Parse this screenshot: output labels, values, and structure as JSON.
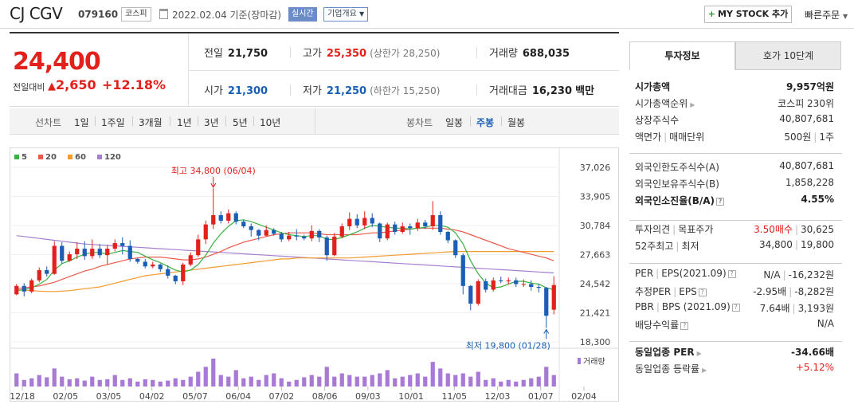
{
  "header": {
    "name": "CJ CGV",
    "code": "079160",
    "market": "코스피",
    "date": "2022.02.04 기준(장마감)",
    "realtime": "실시간",
    "corp_info": "기업개요",
    "mystock_label": "MY STOCK 추가",
    "quick_order": "빠른주문"
  },
  "price": {
    "current": "24,400",
    "change_label": "전일대비",
    "change": "2,650",
    "change_pct": "+12.18%",
    "prev_label": "전일",
    "prev": "21,750",
    "high_label": "고가",
    "high": "25,350",
    "upper_limit": "(상한가 28,250)",
    "volume_label": "거래량",
    "volume": "688,035",
    "open_label": "시가",
    "open": "21,300",
    "low_label": "저가",
    "low": "21,250",
    "lower_limit": "(하한가 15,250)",
    "amount_label": "거래대금",
    "amount": "16,230",
    "amount_unit": "백만"
  },
  "period_bar": {
    "line_label": "선차트",
    "line_periods": [
      "1일",
      "1주일",
      "3개월",
      "1년",
      "3년",
      "5년",
      "10년"
    ],
    "candle_label": "봉차트",
    "candle_periods": [
      "일봉",
      "주봉",
      "월봉"
    ],
    "selected_candle": "주봉"
  },
  "chart_data": {
    "type": "candlestick",
    "legend": [
      "5",
      "20",
      "60",
      "120"
    ],
    "colors": {
      "ma5": "#3cb043",
      "ma20": "#ea5a4b",
      "ma60": "#f39a2d",
      "ma120": "#a67fd0",
      "up": "#e3211c",
      "down": "#1a5fb4"
    },
    "y_ticks": [
      "37,026",
      "33,905",
      "30,784",
      "27,663",
      "24,542",
      "21,421",
      "18,300"
    ],
    "ylim": [
      18300,
      37026
    ],
    "x_ticks": [
      "12/18",
      "02/05",
      "03/05",
      "04/02",
      "05/07",
      "06/04",
      "07/02",
      "08/06",
      "09/03",
      "10/01",
      "11/05",
      "12/03",
      "01/07",
      "02/04"
    ],
    "high_annotation": "최고 34,800 (06/04)",
    "low_annotation": "최저 19,800 (01/28)",
    "volume_label": "거래량",
    "candles": [
      [
        23400,
        24300,
        23300,
        24500
      ],
      [
        24300,
        23700,
        23200,
        24600
      ],
      [
        23700,
        24900,
        23500,
        25100
      ],
      [
        24900,
        26000,
        24700,
        26300
      ],
      [
        26000,
        25600,
        25300,
        26400
      ],
      [
        25600,
        28600,
        25500,
        29100
      ],
      [
        28600,
        27000,
        26700,
        29000
      ],
      [
        27000,
        27700,
        26900,
        28000
      ],
      [
        27700,
        28300,
        27200,
        29000
      ],
      [
        28300,
        27500,
        27100,
        29100
      ],
      [
        27500,
        28300,
        27200,
        29300
      ],
      [
        28300,
        27600,
        27300,
        28800
      ],
      [
        27600,
        28300,
        26600,
        28700
      ],
      [
        28300,
        28900,
        28000,
        29300
      ],
      [
        28900,
        28600,
        27700,
        29500
      ],
      [
        28600,
        27200,
        26900,
        29200
      ],
      [
        27200,
        26900,
        26700,
        27300
      ],
      [
        26900,
        26400,
        26200,
        27200
      ],
      [
        26400,
        26600,
        26200,
        26900
      ],
      [
        26600,
        26100,
        25800,
        26700
      ],
      [
        26100,
        25400,
        25100,
        26500
      ],
      [
        25400,
        24800,
        24500,
        25500
      ],
      [
        24800,
        26600,
        24400,
        26800
      ],
      [
        26600,
        27600,
        26400,
        27900
      ],
      [
        27600,
        29300,
        27400,
        29800
      ],
      [
        29300,
        30900,
        28800,
        31300
      ],
      [
        30900,
        31900,
        30400,
        34800
      ],
      [
        31900,
        31300,
        31000,
        32300
      ],
      [
        31300,
        32100,
        31000,
        32500
      ],
      [
        32100,
        31200,
        30900,
        32300
      ],
      [
        31200,
        30700,
        30500,
        31400
      ],
      [
        30700,
        30300,
        29600,
        31000
      ],
      [
        30300,
        29700,
        29200,
        30400
      ],
      [
        29700,
        30300,
        29600,
        30800
      ],
      [
        30300,
        29900,
        29700,
        30500
      ],
      [
        29900,
        29300,
        29000,
        30100
      ],
      [
        29300,
        29700,
        29100,
        30100
      ],
      [
        29700,
        29600,
        29200,
        30400
      ],
      [
        29600,
        29400,
        29200,
        29800
      ],
      [
        29400,
        30200,
        29100,
        30800
      ],
      [
        30200,
        29500,
        29000,
        30400
      ],
      [
        29500,
        27600,
        27000,
        29700
      ],
      [
        27600,
        29600,
        27500,
        30000
      ],
      [
        29600,
        30700,
        29400,
        31000
      ],
      [
        30700,
        31500,
        30300,
        32200
      ],
      [
        31500,
        30800,
        30500,
        32000
      ],
      [
        30800,
        31600,
        30400,
        32300
      ],
      [
        31600,
        31000,
        30600,
        32100
      ],
      [
        31000,
        29400,
        29000,
        31100
      ],
      [
        29400,
        30900,
        29200,
        31100
      ],
      [
        30900,
        30100,
        29800,
        31200
      ],
      [
        30100,
        30700,
        29900,
        31100
      ],
      [
        30700,
        30500,
        29800,
        31000
      ],
      [
        30500,
        31100,
        30200,
        31500
      ],
      [
        31100,
        30700,
        30400,
        31400
      ],
      [
        30700,
        31900,
        30300,
        33400
      ],
      [
        31900,
        30100,
        29800,
        32300
      ],
      [
        30100,
        29200,
        28900,
        30200
      ],
      [
        29200,
        27600,
        27300,
        29300
      ],
      [
        27600,
        24300,
        23400,
        27800
      ],
      [
        24300,
        22400,
        21700,
        24400
      ],
      [
        22400,
        24800,
        22200,
        25000
      ],
      [
        24800,
        23900,
        23600,
        25100
      ],
      [
        23900,
        24900,
        23700,
        25200
      ],
      [
        24900,
        24800,
        24600,
        25300
      ],
      [
        24800,
        24900,
        24500,
        25200
      ],
      [
        24900,
        24500,
        24200,
        25200
      ],
      [
        24500,
        24500,
        24200,
        25000
      ],
      [
        24500,
        24200,
        23800,
        24900
      ],
      [
        24200,
        24100,
        23600,
        24500
      ],
      [
        24100,
        21100,
        19800,
        24200
      ],
      [
        21750,
        24400,
        21250,
        25350
      ]
    ],
    "volumes": [
      40,
      20,
      25,
      35,
      28,
      55,
      30,
      22,
      25,
      18,
      30,
      20,
      22,
      35,
      20,
      25,
      15,
      22,
      20,
      15,
      18,
      25,
      20,
      30,
      45,
      60,
      85,
      35,
      30,
      50,
      25,
      30,
      20,
      35,
      40,
      25,
      15,
      20,
      28,
      35,
      30,
      60,
      30,
      40,
      35,
      30,
      30,
      35,
      40,
      50,
      25,
      30,
      35,
      40,
      30,
      75,
      55,
      40,
      35,
      40,
      30,
      45,
      20,
      25,
      15,
      20,
      15,
      20,
      25,
      30,
      60,
      35
    ],
    "ma5": [
      23800,
      23900,
      24100,
      24500,
      25000,
      26000,
      26700,
      27000,
      27400,
      27700,
      27900,
      27900,
      27700,
      27900,
      28100,
      28000,
      27900,
      27500,
      27100,
      26800,
      26400,
      26000,
      25800,
      26000,
      26600,
      27600,
      28900,
      29900,
      30700,
      31300,
      31400,
      31200,
      30900,
      30600,
      30300,
      30000,
      29800,
      29700,
      29600,
      29700,
      29700,
      29300,
      29300,
      29500,
      29800,
      30100,
      30500,
      30800,
      30700,
      30600,
      30500,
      30500,
      30400,
      30500,
      30600,
      30800,
      30800,
      30600,
      30000,
      28800,
      27000,
      25600,
      24600,
      24100,
      24200,
      24500,
      24800,
      24800,
      24600,
      24500,
      24100,
      23900
    ],
    "ma20": [
      24000,
      24100,
      24200,
      24300,
      24500,
      24700,
      25000,
      25300,
      25600,
      25900,
      26100,
      26400,
      26600,
      26800,
      27000,
      27200,
      27300,
      27400,
      27400,
      27400,
      27300,
      27200,
      27100,
      27100,
      27200,
      27400,
      27700,
      28000,
      28400,
      28700,
      29000,
      29200,
      29400,
      29600,
      29800,
      29900,
      30000,
      30000,
      30000,
      30000,
      29900,
      29800,
      29800,
      29800,
      29800,
      29800,
      29900,
      30000,
      30000,
      30100,
      30200,
      30300,
      30400,
      30500,
      30500,
      30500,
      30500,
      30400,
      30300,
      30100,
      29800,
      29500,
      29200,
      28900,
      28600,
      28300,
      28100,
      27900,
      27700,
      27500,
      27300,
      27000
    ],
    "ma60": [
      23900,
      23850,
      23800,
      23750,
      23700,
      23700,
      23750,
      23800,
      23900,
      24000,
      24100,
      24200,
      24400,
      24600,
      24800,
      25000,
      25200,
      25400,
      25500,
      25600,
      25700,
      25800,
      25900,
      26000,
      26100,
      26200,
      26300,
      26400,
      26500,
      26600,
      26700,
      26800,
      26900,
      27000,
      27100,
      27200,
      27200,
      27300,
      27300,
      27300,
      27300,
      27300,
      27300,
      27300,
      27300,
      27350,
      27400,
      27450,
      27500,
      27550,
      27600,
      27650,
      27700,
      27750,
      27800,
      27850,
      27900,
      27950,
      28000,
      28000,
      28000,
      28000,
      28000,
      28000,
      28000,
      28000,
      28000,
      28000,
      28000,
      28000,
      28000,
      28000
    ],
    "ma120": [
      29700,
      29600,
      29500,
      29400,
      29300,
      29200,
      29100,
      29000,
      28900,
      28800,
      28750,
      28700,
      28650,
      28600,
      28550,
      28500,
      28450,
      28400,
      28350,
      28300,
      28250,
      28200,
      28150,
      28100,
      28050,
      28000,
      27950,
      27900,
      27850,
      27800,
      27750,
      27700,
      27650,
      27600,
      27550,
      27500,
      27450,
      27400,
      27350,
      27300,
      27250,
      27200,
      27150,
      27100,
      27050,
      27000,
      26950,
      26900,
      26850,
      26800,
      26750,
      26700,
      26650,
      26600,
      26550,
      26500,
      26450,
      26400,
      26350,
      26300,
      26250,
      26200,
      26150,
      26100,
      26050,
      26000,
      25950,
      25900,
      25850,
      25800,
      25750,
      25700
    ]
  },
  "invest": {
    "tab_active": "투자정보",
    "tab_other": "호가 10단계",
    "sec1": [
      {
        "k": "시가총액",
        "v": "9,957억원",
        "bold": true
      },
      {
        "k": "시가총액순위",
        "v": "코스피 230위",
        "arrow": true
      },
      {
        "k": "상장주식수",
        "v": "40,807,681"
      },
      {
        "k": "액면가",
        "k2": "매매단위",
        "v": "500원",
        "v2": "1주"
      }
    ],
    "sec2": [
      {
        "k": "외국인한도주식수(A)",
        "v": "40,807,681"
      },
      {
        "k": "외국인보유주식수(B)",
        "v": "1,858,228"
      },
      {
        "k": "외국인소진율(B/A)",
        "v": "4.55%",
        "bold": true,
        "q": true
      }
    ],
    "sec3": [
      {
        "k": "투자의견",
        "k2": "목표주가",
        "v": "3.50매수",
        "v2": "30,625",
        "red": true
      },
      {
        "k": "52주최고",
        "k2": "최저",
        "v": "34,800",
        "v2": "19,800"
      }
    ],
    "sec4": [
      {
        "k": "PER",
        "k2": "EPS(2021.09)",
        "v": "N/A",
        "v2": "-16,232원",
        "q": true
      },
      {
        "k": "추정PER",
        "k2": "EPS",
        "v": "-2.95배",
        "v2": "-8,282원",
        "q": true
      },
      {
        "k": "PBR",
        "k2": "BPS (2021.09)",
        "v": "7.64배",
        "v2": "3,193원",
        "q": true
      },
      {
        "k": "배당수익률",
        "v": "N/A",
        "q": true
      }
    ],
    "sec5": [
      {
        "k": "동일업종 PER",
        "v": "-34.66배",
        "bold": true,
        "arrow": true
      },
      {
        "k": "동일업종 등락률",
        "v": "+5.12%",
        "red": true,
        "arrow": true
      }
    ]
  }
}
